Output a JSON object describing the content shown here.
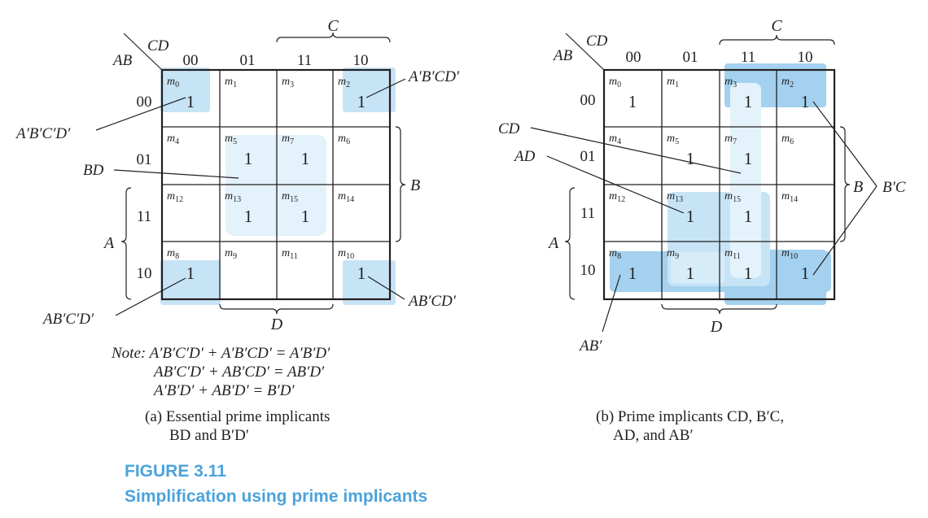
{
  "map_a": {
    "corner_row": "AB",
    "corner_col": "CD",
    "col_codes": [
      "00",
      "01",
      "11",
      "10"
    ],
    "row_codes": [
      "00",
      "01",
      "11",
      "10"
    ],
    "minterms": [
      "m0",
      "m1",
      "m3",
      "m2",
      "m4",
      "m5",
      "m7",
      "m6",
      "m12",
      "m13",
      "m15",
      "m14",
      "m8",
      "m9",
      "m11",
      "m10"
    ],
    "values": [
      "1",
      "",
      "",
      "1",
      "",
      "1",
      "1",
      "",
      "",
      "1",
      "1",
      "",
      "1",
      "",
      "",
      "1"
    ],
    "brace_C": "C",
    "brace_B": "B",
    "brace_A": "A",
    "brace_D": "D",
    "labels": {
      "apbpcpdp": "A′B′C′D′",
      "apbpcdp": "A′B′CD′",
      "bd": "BD",
      "abpcpdp": "AB′C′D′",
      "abpcdp": "AB′CD′"
    },
    "note": [
      "Note: A′B′C′D′ + A′B′CD′ = A′B′D′",
      "AB′C′D′ + AB′CD′ = AB′D′",
      "A′B′D′ + AB′D′ = B′D′"
    ],
    "caption": [
      "(a) Essential prime implicants",
      "BD and B′D′"
    ]
  },
  "map_b": {
    "corner_row": "AB",
    "corner_col": "CD",
    "col_codes": [
      "00",
      "01",
      "11",
      "10"
    ],
    "row_codes": [
      "00",
      "01",
      "11",
      "10"
    ],
    "minterms": [
      "m0",
      "m1",
      "m3",
      "m2",
      "m4",
      "m5",
      "m7",
      "m6",
      "m12",
      "m13",
      "m15",
      "m14",
      "m8",
      "m9",
      "m11",
      "m10"
    ],
    "values": [
      "1",
      "",
      "1",
      "1",
      "",
      "1",
      "1",
      "",
      "",
      "1",
      "1",
      "",
      "1",
      "1",
      "1",
      "1"
    ],
    "brace_C": "C",
    "brace_B": "B",
    "brace_A": "A",
    "brace_D": "D",
    "labels": {
      "cd": "CD",
      "ad": "AD",
      "bpc": "B′C",
      "abp": "AB′"
    },
    "caption": [
      "(b) Prime implicants CD, B′C,",
      "AD, and AB′"
    ]
  },
  "figure": {
    "number": "FIGURE 3.11",
    "title": "Simplification using prime implicants"
  },
  "colors": {
    "light_fill": "#c6e4f6",
    "lighter_fill": "#e3f2fb",
    "dark_fill": "#a3d1ef",
    "caption_blue": "#4ba3dc",
    "ink": "#231f20"
  }
}
